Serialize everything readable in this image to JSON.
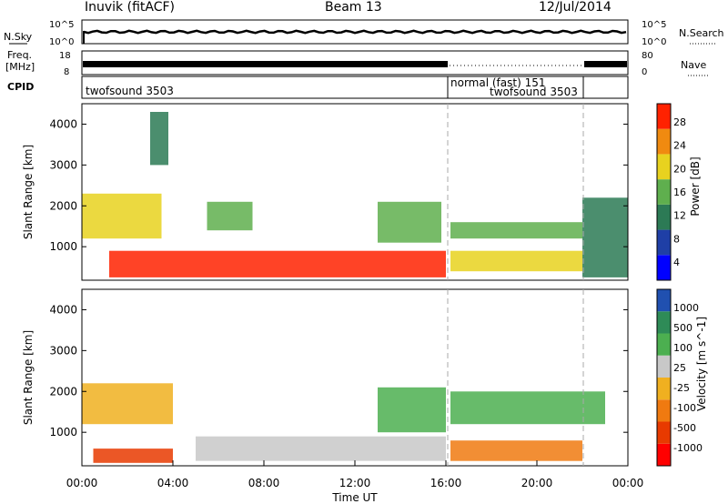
{
  "header": {
    "station": "Inuvik (fitACF)",
    "beam": "Beam 13",
    "date": "12/Jul/2014"
  },
  "noise_panel": {
    "left_label": "N.Sky",
    "right_label": "N.Search",
    "left_ticks": [
      "10^5",
      "10^0"
    ],
    "right_ticks": [
      "10^5",
      "10^0"
    ],
    "sky_level_log10": 4.5
  },
  "freq_panel": {
    "left_label_1": "Freq.",
    "left_label_2": "[MHz]",
    "right_label": "Nave",
    "left_ticks": [
      "18",
      "8"
    ],
    "right_ticks": [
      "80",
      "0"
    ]
  },
  "cpid_panel": {
    "label": "CPID",
    "segments": [
      {
        "name": "twofsound 3503",
        "start": "00:00",
        "end": "16:00"
      },
      {
        "name": "normal (fast) 151",
        "start": "16:00",
        "end": "21:50"
      },
      {
        "name": "twofsound 3503",
        "start": "16:00",
        "end": "21:50"
      }
    ]
  },
  "chart_data": [
    {
      "type": "heatmap",
      "quantity": "Power",
      "ylabel": "Slant Range [km]",
      "ylim": [
        180,
        4500
      ],
      "yticks": [
        1000,
        2000,
        3000,
        4000
      ],
      "colorbar": {
        "label": "Power [dB]",
        "range": [
          0,
          30
        ],
        "ticks": [
          "28",
          "24",
          "20",
          "16",
          "12",
          "8",
          "4"
        ],
        "colors": [
          "#0000ff",
          "#1f3fa6",
          "#2c7a55",
          "#5faf4e",
          "#e8d21f",
          "#f08a10",
          "#ff2200"
        ]
      },
      "regions": [
        {
          "t": [
            1.2,
            16.0
          ],
          "r": [
            250,
            900
          ],
          "level": 28
        },
        {
          "t": [
            0.0,
            3.5
          ],
          "r": [
            1200,
            2300
          ],
          "level": 18
        },
        {
          "t": [
            5.5,
            7.5
          ],
          "r": [
            1400,
            2100
          ],
          "level": 16
        },
        {
          "t": [
            13.0,
            15.8
          ],
          "r": [
            1100,
            2100
          ],
          "level": 14
        },
        {
          "t": [
            16.2,
            22.0
          ],
          "r": [
            1200,
            1600
          ],
          "level": 14
        },
        {
          "t": [
            16.2,
            22.0
          ],
          "r": [
            400,
            900
          ],
          "level": 20
        },
        {
          "t": [
            22.0,
            24.0
          ],
          "r": [
            250,
            2200
          ],
          "level": 10
        },
        {
          "t": [
            3.0,
            3.8
          ],
          "r": [
            3000,
            4300
          ],
          "level": 10
        }
      ]
    },
    {
      "type": "heatmap",
      "quantity": "Velocity",
      "ylabel": "Slant Range [km]",
      "xlabel": "Time UT",
      "ylim": [
        180,
        4500
      ],
      "yticks": [
        1000,
        2000,
        3000,
        4000
      ],
      "xticks": [
        "00:00",
        "04:00",
        "08:00",
        "12:00",
        "16:00",
        "20:00",
        "00:00"
      ],
      "colorbar": {
        "label": "Velocity [m s^-1]",
        "ticks": [
          "1000",
          "500",
          "100",
          "25",
          "-25",
          "-100",
          "-500",
          "-1000"
        ],
        "colors": [
          "#ff0000",
          "#e83a00",
          "#f07a10",
          "#f0b020",
          "#c8c8c8",
          "#4caf50",
          "#2e8b57",
          "#2050b0"
        ]
      },
      "regions": [
        {
          "t": [
            0.0,
            4.0
          ],
          "r": [
            1200,
            2200
          ],
          "level": 0
        },
        {
          "t": [
            5.0,
            16.0
          ],
          "r": [
            300,
            900
          ],
          "level": 60
        },
        {
          "t": [
            0.5,
            4.0
          ],
          "r": [
            250,
            600
          ],
          "level": -150
        },
        {
          "t": [
            13.0,
            16.0
          ],
          "r": [
            1000,
            2100
          ],
          "level": 200
        },
        {
          "t": [
            16.2,
            23.0
          ],
          "r": [
            1200,
            2000
          ],
          "level": 300
        },
        {
          "t": [
            16.2,
            22.0
          ],
          "r": [
            300,
            800
          ],
          "level": -50
        }
      ]
    }
  ]
}
